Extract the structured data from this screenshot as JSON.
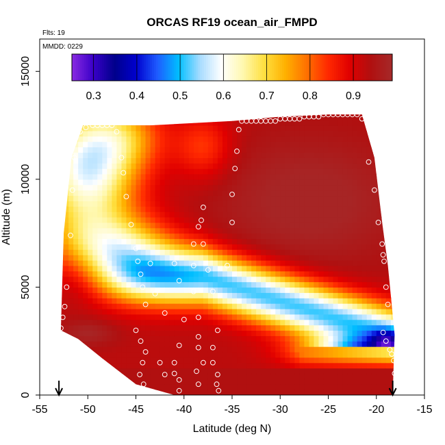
{
  "chart_data": {
    "type": "heatmap",
    "title": "ORCAS RF19 ocean_air_FMPD",
    "annotations": {
      "flights": "Flts: 19",
      "date": "MMDD: 0229"
    },
    "xlabel": "Latitude (deg N)",
    "ylabel": "Altitude (m)",
    "xlim": [
      -55,
      -15
    ],
    "ylim": [
      0,
      16500
    ],
    "x_ticks": [
      -55,
      -50,
      -45,
      -40,
      -35,
      -30,
      -25,
      -20,
      -15
    ],
    "x_tick_labels": [
      "-55",
      "-50",
      "-45",
      "-40",
      "-35",
      "-30",
      "-25",
      "-20",
      "-15"
    ],
    "y_ticks": [
      0,
      5000,
      10000,
      15000
    ],
    "y_tick_labels": [
      "0",
      "5000",
      "10000",
      "15000"
    ],
    "colorbar": {
      "range": [
        0.25,
        0.99
      ],
      "ticks": [
        0.3,
        0.4,
        0.5,
        0.6,
        0.7,
        0.8,
        0.9
      ],
      "tick_labels": [
        "0.3",
        "0.4",
        "0.5",
        "0.6",
        "0.7",
        "0.8",
        "0.9"
      ],
      "colors": [
        "#8a2be2",
        "#3a00c8",
        "#00008b",
        "#0000cd",
        "#1e5bff",
        "#00bfff",
        "#a8dcff",
        "#ffffff",
        "#fff8b0",
        "#ffe040",
        "#ffb000",
        "#ff7000",
        "#ff2800",
        "#e00000",
        "#b01010",
        "#a52a2a"
      ]
    },
    "domain_boundary": [
      [
        -52.8,
        3000
      ],
      [
        -52.5,
        7500
      ],
      [
        -51.7,
        11000
      ],
      [
        -50.5,
        12500
      ],
      [
        -43.5,
        12500
      ],
      [
        -35,
        12700
      ],
      [
        -30,
        12900
      ],
      [
        -25,
        13000
      ],
      [
        -21.5,
        13000
      ],
      [
        -20.2,
        11000
      ],
      [
        -19.4,
        8000
      ],
      [
        -18.8,
        6000
      ],
      [
        -18.1,
        2800
      ],
      [
        -18.3,
        0
      ],
      [
        -41,
        0
      ],
      [
        -45,
        500
      ],
      [
        -48.5,
        1700
      ],
      [
        -51,
        2600
      ],
      [
        -52.8,
        3000
      ]
    ],
    "field_description": "Fraction of air of ocean origin vs latitude and altitude; high (~0.95) near surface and in the upper troposphere, a low-value (~0.45-0.55) band at mid levels, and a deep low core (~0.3) near 2000 m north of -25 deg.",
    "sample_points": [
      [
        -50.2,
        12400
      ],
      [
        -49.5,
        12500
      ],
      [
        -49,
        12500
      ],
      [
        -48.5,
        12500
      ],
      [
        -48,
        12500
      ],
      [
        -47.5,
        12500
      ],
      [
        -47,
        12200
      ],
      [
        -46.5,
        11000
      ],
      [
        -46.3,
        10300
      ],
      [
        -46,
        9200
      ],
      [
        -45.5,
        7900
      ],
      [
        -45,
        6800
      ],
      [
        -44.8,
        6200
      ],
      [
        -44.5,
        5600
      ],
      [
        -44.3,
        5000
      ],
      [
        -44,
        4200
      ],
      [
        -45,
        3000
      ],
      [
        -44.5,
        2500
      ],
      [
        -44,
        2000
      ],
      [
        -44.3,
        1500
      ],
      [
        -44.6,
        950
      ],
      [
        -44.2,
        500
      ],
      [
        -44.3,
        250
      ],
      [
        -44.5,
        150
      ],
      [
        -43.5,
        6100
      ],
      [
        -43,
        4700
      ],
      [
        -42,
        3800
      ],
      [
        -42.5,
        1500
      ],
      [
        -42,
        950
      ],
      [
        -41,
        6100
      ],
      [
        -40.5,
        5300
      ],
      [
        -40,
        3500
      ],
      [
        -40.5,
        2300
      ],
      [
        -41,
        1500
      ],
      [
        -41,
        1000
      ],
      [
        -40.5,
        700
      ],
      [
        -40.5,
        200
      ],
      [
        -39,
        6000
      ],
      [
        -39,
        4800
      ],
      [
        -38.5,
        3600
      ],
      [
        -38.5,
        2700
      ],
      [
        -38.5,
        2200
      ],
      [
        -38,
        1500
      ],
      [
        -38.7,
        1100
      ],
      [
        -38.5,
        500
      ],
      [
        -39,
        7000
      ],
      [
        -38.5,
        7800
      ],
      [
        -38.2,
        8100
      ],
      [
        -38,
        8700
      ],
      [
        -38,
        7000
      ],
      [
        -37.5,
        5800
      ],
      [
        -37,
        4800
      ],
      [
        -36.5,
        3000
      ],
      [
        -37,
        2200
      ],
      [
        -37,
        1500
      ],
      [
        -36.5,
        950
      ],
      [
        -36.6,
        500
      ],
      [
        -36.4,
        200
      ],
      [
        -35.5,
        6000
      ],
      [
        -35,
        8000
      ],
      [
        -35,
        9300
      ],
      [
        -34.7,
        10500
      ],
      [
        -34.5,
        11300
      ],
      [
        -34.3,
        12300
      ],
      [
        -34,
        12700
      ],
      [
        -33.5,
        12700
      ],
      [
        -33,
        12700
      ],
      [
        -32.5,
        12700
      ],
      [
        -32,
        12700
      ],
      [
        -31.5,
        12700
      ],
      [
        -31,
        12700
      ],
      [
        -30.5,
        12700
      ],
      [
        -30,
        12800
      ],
      [
        -29.5,
        12800
      ],
      [
        -29,
        12800
      ],
      [
        -28.5,
        12800
      ],
      [
        -28,
        12800
      ],
      [
        -27.5,
        12900
      ],
      [
        -27,
        12900
      ],
      [
        -26.5,
        12900
      ],
      [
        -26,
        12900
      ],
      [
        -25.5,
        13000
      ],
      [
        -25,
        13000
      ],
      [
        -24.5,
        13000
      ],
      [
        -24,
        13000
      ],
      [
        -23.5,
        13000
      ],
      [
        -23,
        13000
      ],
      [
        -22.5,
        13000
      ],
      [
        -22,
        13000
      ],
      [
        -21.5,
        12800
      ],
      [
        -20.8,
        10800
      ],
      [
        -20.2,
        9500
      ],
      [
        -19.8,
        8000
      ],
      [
        -19.4,
        7000
      ],
      [
        -19.3,
        6500
      ],
      [
        -19.2,
        6200
      ],
      [
        -19,
        5000
      ],
      [
        -18.8,
        4200
      ],
      [
        -19.3,
        2900
      ],
      [
        -19,
        2500
      ],
      [
        -18.6,
        2100
      ],
      [
        -18.4,
        1900
      ],
      [
        -18.2,
        1600
      ],
      [
        -18.1,
        1000
      ],
      [
        -18,
        400
      ],
      [
        -52.8,
        3100
      ],
      [
        -52.6,
        3600
      ],
      [
        -52.4,
        4100
      ],
      [
        -52.2,
        5000
      ],
      [
        -51.8,
        7400
      ],
      [
        -51.6,
        9500
      ],
      [
        -51.4,
        11000
      ],
      [
        -50.8,
        12200
      ]
    ],
    "arrows": [
      -53,
      -18.3
    ]
  }
}
